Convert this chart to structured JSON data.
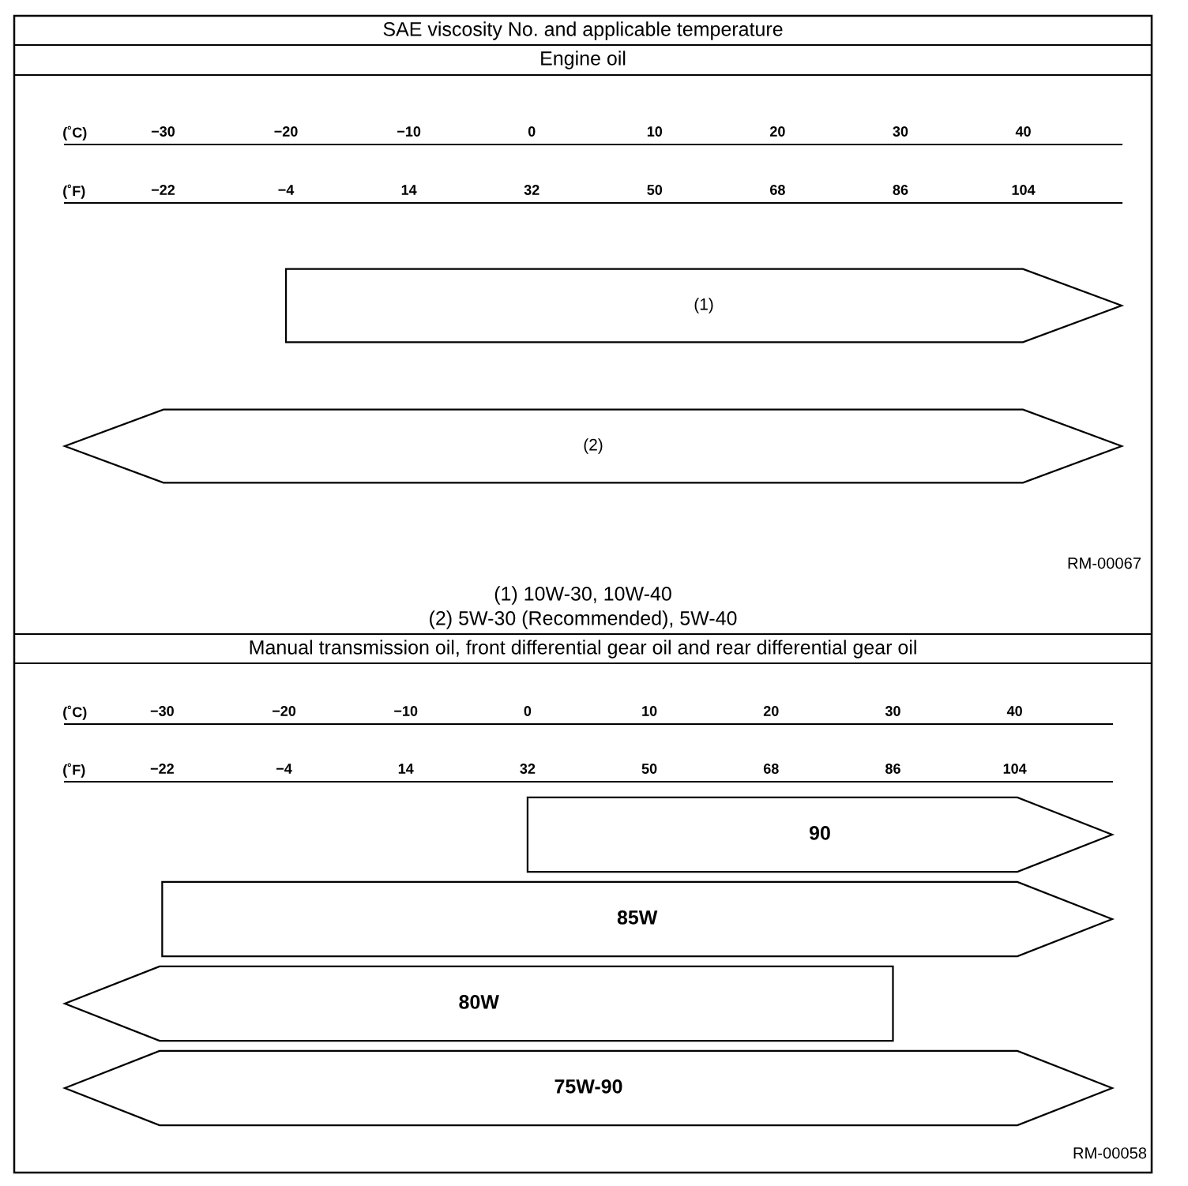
{
  "chart_data": [
    {
      "type": "bar",
      "orientation": "horizontal",
      "title": "SAE viscosity No. and applicable temperature",
      "subtitle": "Engine oil",
      "categories": [
        "(1)",
        "(2)"
      ],
      "base": [
        -20,
        -38
      ],
      "values": [
        68,
        86
      ],
      "color": "#ffffff",
      "xlabel": "(˚C)",
      "xlim": [
        -38,
        48
      ],
      "xticks": [
        -30,
        -20,
        -10,
        0,
        10,
        20,
        30,
        40
      ],
      "x2label": "(˚F)",
      "x2lim": [
        -36.4,
        118.4
      ],
      "x2ticks": [
        -22,
        -4,
        14,
        32,
        50,
        68,
        86,
        104
      ],
      "annotations": [
        "RM-00067",
        "(1) 10W-30, 10W-40",
        "(2) 5W-30 (Recommended), 5W-40"
      ]
    },
    {
      "type": "bar",
      "orientation": "horizontal",
      "title": "Manual transmission oil, front differential gear oil and rear differential gear oil",
      "categories": [
        "90",
        "85W",
        "80W",
        "75W-90"
      ],
      "base": [
        0,
        -30,
        -38,
        -38
      ],
      "values": [
        48,
        78,
        68,
        86
      ],
      "color": "#ffffff",
      "xlabel": "(˚C)",
      "xlim": [
        -38,
        48
      ],
      "xticks": [
        -30,
        -20,
        -10,
        0,
        10,
        20,
        30,
        40
      ],
      "x2label": "(˚F)",
      "x2lim": [
        -36.4,
        118.4
      ],
      "x2ticks": [
        -22,
        -4,
        14,
        32,
        50,
        68,
        86,
        104
      ],
      "annotations": [
        "RM-00058"
      ]
    }
  ]
}
